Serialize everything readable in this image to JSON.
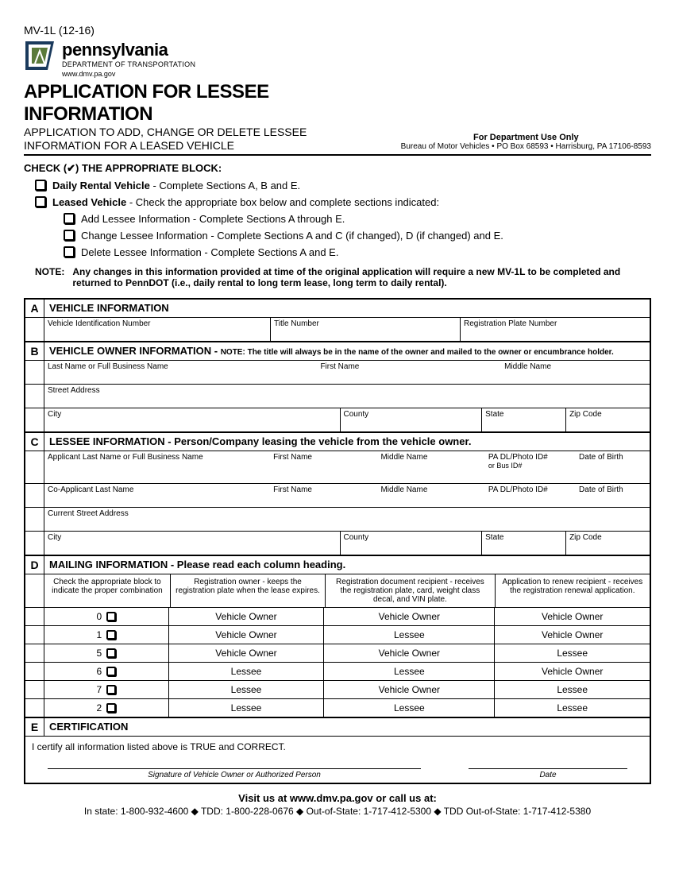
{
  "formId": "MV-1L (12-16)",
  "logo": {
    "stateName": "pennsylvania",
    "deptName": "DEPARTMENT OF TRANSPORTATION",
    "website": "www.dmv.pa.gov"
  },
  "header": {
    "titleMain": "APPLICATION FOR LESSEE INFORMATION",
    "titleSub1": "APPLICATION TO ADD, CHANGE OR DELETE LESSEE",
    "titleSub2": "INFORMATION FOR A LEASED VEHICLE",
    "deptOnly": "For Department Use Only",
    "bureau": "Bureau of Motor Vehicles • PO Box 68593 • Harrisburg, PA 17106-8593"
  },
  "checkInstruction": "CHECK (✔) THE APPROPRIATE BLOCK:",
  "options": {
    "daily": "<b>Daily Rental Vehicle</b> - Complete Sections A, B and E.",
    "leased": "<b>Leased Vehicle</b> - Check the appropriate box below and complete sections indicated:",
    "add": "Add Lessee Information - <span style='font-weight:normal'>Complete Sections A through E.</span>",
    "change": "Change Lessee Information - <span style='font-weight:normal'>Complete Sections A and C (if changed), D (if changed) and E.</span>",
    "delete": "Delete Lessee Information - <span style='font-weight:normal'>Complete Sections A and E.</span>"
  },
  "note": {
    "label": "NOTE:",
    "text": "Any changes in this information provided at time of the original application will require a new MV-1L to be completed and returned to PennDOT (i.e., daily rental to long term lease, long term to daily rental)."
  },
  "sectionA": {
    "letter": "A",
    "title": "VEHICLE INFORMATION",
    "vin": "Vehicle Identification Number",
    "titleNum": "Title Number",
    "plate": "Registration Plate Number"
  },
  "sectionB": {
    "letter": "B",
    "title": "VEHICLE OWNER INFORMATION - ",
    "titleNote": "NOTE: The title will always be in the name of the owner and mailed to the owner or encumbrance holder.",
    "lastName": "Last Name or Full Business Name",
    "firstName": "First Name",
    "middleName": "Middle Name",
    "street": "Street Address",
    "city": "City",
    "county": "County",
    "state": "State",
    "zip": "Zip Code"
  },
  "sectionC": {
    "letter": "C",
    "title": "LESSEE INFORMATION - Person/Company leasing the vehicle from the vehicle owner.",
    "appLast": "Applicant Last Name or Full Business Name",
    "firstName": "First Name",
    "middleName": "Middle Name",
    "dlId": "PA DL/Photo ID#",
    "busId": "or Bus ID#",
    "dob": "Date of Birth",
    "coLast": "Co-Applicant Last Name",
    "street": "Current Street Address",
    "city": "City",
    "county": "County",
    "state": "State",
    "zip": "Zip Code"
  },
  "sectionD": {
    "letter": "D",
    "title": "MAILING INFORMATION - Please read each column heading.",
    "col1": "Check the appropriate block to indicate the proper combination",
    "col2": "Registration owner - keeps the registration plate when the lease expires.",
    "col3": "Registration document recipient - receives the registration plate, card, weight class decal, and VIN plate.",
    "col4": "Application to renew recipient - receives the registration renewal application.",
    "rows": [
      {
        "num": "0",
        "c2": "Vehicle Owner",
        "c3": "Vehicle Owner",
        "c4": "Vehicle Owner"
      },
      {
        "num": "1",
        "c2": "Vehicle Owner",
        "c3": "Lessee",
        "c4": "Vehicle Owner"
      },
      {
        "num": "5",
        "c2": "Vehicle Owner",
        "c3": "Vehicle Owner",
        "c4": "Lessee"
      },
      {
        "num": "6",
        "c2": "Lessee",
        "c3": "Lessee",
        "c4": "Vehicle Owner"
      },
      {
        "num": "7",
        "c2": "Lessee",
        "c3": "Vehicle Owner",
        "c4": "Lessee"
      },
      {
        "num": "2",
        "c2": "Lessee",
        "c3": "Lessee",
        "c4": "Lessee"
      }
    ]
  },
  "sectionE": {
    "letter": "E",
    "title": "CERTIFICATION",
    "text": "I certify all information listed above is TRUE and CORRECT.",
    "sigLabel": "Signature of Vehicle Owner or Authorized Person",
    "dateLabel": "Date"
  },
  "footer": {
    "visit": "Visit us at www.dmv.pa.gov or call us at:",
    "contact": "In state: 1-800-932-4600 ◆ TDD:  1-800-228-0676 ◆ Out-of-State: 1-717-412-5300 ◆ TDD Out-of-State:  1-717-412-5380"
  },
  "colors": {
    "border": "#000000",
    "text": "#000000",
    "bg": "#ffffff"
  }
}
